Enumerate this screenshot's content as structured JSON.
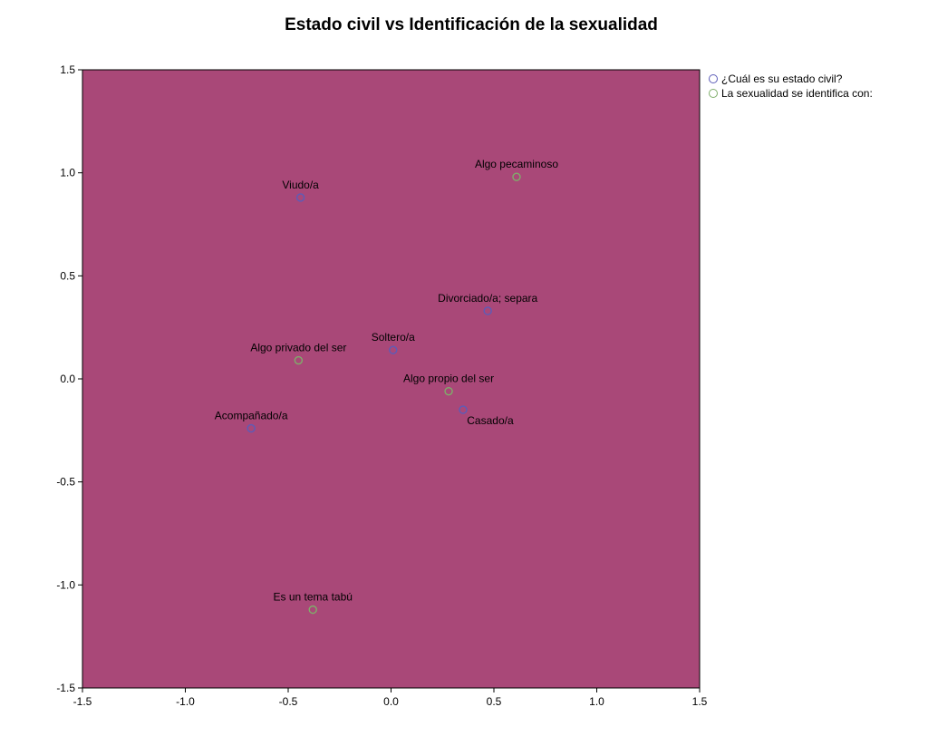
{
  "chart_data": {
    "type": "scatter",
    "title": "Estado civil vs Identificación de la sexualidad",
    "xlabel": "",
    "ylabel": "",
    "xlim": [
      -1.5,
      1.5
    ],
    "ylim": [
      -1.5,
      1.5
    ],
    "xticks": [
      "-1.5",
      "-1.0",
      "-0.5",
      "0.0",
      "0.5",
      "1.0",
      "1.5"
    ],
    "yticks": [
      "1.5",
      "1.0",
      "0.5",
      "0.0",
      "-0.5",
      "-1.0",
      "-1.5"
    ],
    "grid": false,
    "legend_position": "top-right-outside",
    "background_color": "#a94878",
    "series": [
      {
        "name": "¿Cuál es su estado civil?",
        "color": "#5c5cb8",
        "points": [
          {
            "label": "Viudo/a",
            "x": -0.44,
            "y": 0.88
          },
          {
            "label": "Divorciado/a; separa",
            "x": 0.47,
            "y": 0.33
          },
          {
            "label": "Soltero/a",
            "x": 0.01,
            "y": 0.14
          },
          {
            "label": "Casado/a",
            "x": 0.35,
            "y": -0.15
          },
          {
            "label": "Acompañado/a",
            "x": -0.68,
            "y": -0.24
          }
        ]
      },
      {
        "name": "La sexualidad se identifica con:",
        "color": "#7fae6a",
        "points": [
          {
            "label": "Algo pecaminoso",
            "x": 0.61,
            "y": 0.98
          },
          {
            "label": "Algo privado del ser",
            "x": -0.45,
            "y": 0.09
          },
          {
            "label": "Algo propio del ser",
            "x": 0.28,
            "y": -0.06
          },
          {
            "label": "Es un tema tabú",
            "x": -0.38,
            "y": -1.12
          }
        ]
      }
    ]
  }
}
